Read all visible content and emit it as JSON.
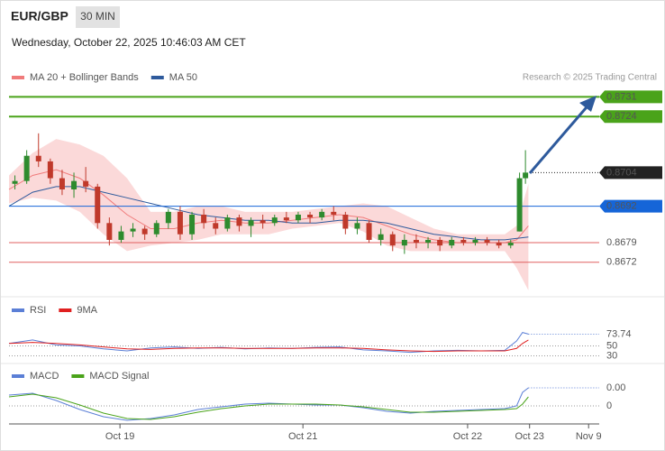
{
  "header": {
    "symbol": "EUR/GBP",
    "timeframe": "30 MIN",
    "datetime": "Wednesday, October 22, 2025 10:46:03 AM CET"
  },
  "credit": "Research © 2025 Trading Central",
  "chart_data": [
    {
      "type": "candlestick",
      "xlim": [
        0,
        100
      ],
      "ylim": [
        0.8661,
        0.8735
      ],
      "up_color": "#2e8b2e",
      "down_color": "#c0392b",
      "x": [
        1,
        3,
        5,
        7,
        9,
        11,
        13,
        15,
        17,
        19,
        21,
        23,
        25,
        27,
        29,
        31,
        33,
        35,
        37,
        39,
        41,
        43,
        45,
        47,
        49,
        51,
        53,
        55,
        57,
        59,
        61,
        63,
        65,
        67,
        69,
        71,
        73,
        75,
        77,
        79,
        81,
        83,
        85,
        86.5,
        87.5
      ],
      "open": [
        0.87,
        0.8701,
        0.871,
        0.8708,
        0.8702,
        0.8698,
        0.8701,
        0.8699,
        0.8686,
        0.868,
        0.8683,
        0.8684,
        0.8682,
        0.8686,
        0.869,
        0.8682,
        0.8689,
        0.8686,
        0.8684,
        0.8688,
        0.8685,
        0.8687,
        0.8686,
        0.8688,
        0.8687,
        0.8689,
        0.8688,
        0.869,
        0.8689,
        0.8684,
        0.8686,
        0.868,
        0.8682,
        0.8678,
        0.868,
        0.8679,
        0.868,
        0.8678,
        0.868,
        0.8679,
        0.868,
        0.8679,
        0.8678,
        0.8683,
        0.8702
      ],
      "high": [
        0.8703,
        0.8712,
        0.8718,
        0.8709,
        0.8705,
        0.8704,
        0.8706,
        0.87,
        0.8688,
        0.8685,
        0.8686,
        0.8685,
        0.8687,
        0.8691,
        0.8692,
        0.869,
        0.8691,
        0.8688,
        0.8689,
        0.8689,
        0.8688,
        0.8689,
        0.8689,
        0.869,
        0.869,
        0.869,
        0.8691,
        0.8692,
        0.869,
        0.8688,
        0.8687,
        0.8684,
        0.8683,
        0.8682,
        0.8682,
        0.8681,
        0.8681,
        0.8681,
        0.8681,
        0.8681,
        0.8681,
        0.868,
        0.868,
        0.8704,
        0.8712
      ],
      "low": [
        0.8698,
        0.87,
        0.8706,
        0.87,
        0.8696,
        0.8695,
        0.8697,
        0.8684,
        0.8678,
        0.8679,
        0.8681,
        0.868,
        0.8681,
        0.8684,
        0.868,
        0.868,
        0.8684,
        0.8682,
        0.8683,
        0.8683,
        0.8681,
        0.8684,
        0.8685,
        0.8686,
        0.8686,
        0.8686,
        0.8687,
        0.8687,
        0.8682,
        0.8682,
        0.8679,
        0.8678,
        0.8676,
        0.8675,
        0.8677,
        0.8677,
        0.8676,
        0.8677,
        0.8678,
        0.8678,
        0.8678,
        0.8677,
        0.8677,
        0.8683,
        0.87
      ],
      "close": [
        0.8701,
        0.871,
        0.8708,
        0.8702,
        0.8698,
        0.8701,
        0.8699,
        0.8686,
        0.868,
        0.8683,
        0.8684,
        0.8682,
        0.8686,
        0.869,
        0.8682,
        0.8689,
        0.8686,
        0.8684,
        0.8688,
        0.8685,
        0.8687,
        0.8686,
        0.8688,
        0.8687,
        0.8689,
        0.8688,
        0.869,
        0.8689,
        0.8684,
        0.8686,
        0.868,
        0.8682,
        0.8678,
        0.868,
        0.8679,
        0.868,
        0.8678,
        0.868,
        0.8679,
        0.868,
        0.8679,
        0.8678,
        0.8679,
        0.8702,
        0.8704
      ],
      "series": [
        {
          "name": "MA 20 + Bollinger Bands",
          "color": "#f07b7b",
          "band_color": "#fbd9d9",
          "x": [
            0,
            4,
            8,
            12,
            16,
            20,
            24,
            28,
            32,
            36,
            40,
            44,
            48,
            52,
            56,
            60,
            64,
            68,
            72,
            76,
            80,
            84,
            86,
            88
          ],
          "values": [
            0.8698,
            0.8703,
            0.8705,
            0.8702,
            0.8696,
            0.8689,
            0.8684,
            0.8684,
            0.8686,
            0.8687,
            0.8686,
            0.8686,
            0.8687,
            0.8688,
            0.8689,
            0.8688,
            0.8685,
            0.8682,
            0.868,
            0.8679,
            0.8679,
            0.8679,
            0.868,
            0.8685
          ],
          "upper": [
            0.8703,
            0.8711,
            0.8716,
            0.8714,
            0.871,
            0.8702,
            0.869,
            0.869,
            0.8692,
            0.8692,
            0.869,
            0.869,
            0.869,
            0.8691,
            0.8692,
            0.8693,
            0.8692,
            0.8688,
            0.8684,
            0.8682,
            0.8682,
            0.8682,
            0.8685,
            0.87
          ],
          "lower": [
            0.8693,
            0.8695,
            0.8694,
            0.869,
            0.8682,
            0.8676,
            0.8678,
            0.8679,
            0.868,
            0.8682,
            0.8682,
            0.8682,
            0.8684,
            0.8685,
            0.8686,
            0.8683,
            0.8678,
            0.8676,
            0.8676,
            0.8676,
            0.8676,
            0.8676,
            0.867,
            0.8662
          ]
        },
        {
          "name": "MA 50",
          "color": "#2e5a9c",
          "x": [
            0,
            4,
            8,
            12,
            16,
            20,
            24,
            28,
            32,
            36,
            40,
            44,
            48,
            52,
            56,
            60,
            64,
            68,
            72,
            76,
            80,
            84,
            88
          ],
          "values": [
            0.8692,
            0.8697,
            0.8699,
            0.8699,
            0.8697,
            0.8695,
            0.8693,
            0.8691,
            0.8689,
            0.8688,
            0.8687,
            0.8687,
            0.8686,
            0.8686,
            0.8687,
            0.8687,
            0.8686,
            0.8684,
            0.8682,
            0.8681,
            0.868,
            0.868,
            0.8681
          ]
        }
      ],
      "levels": [
        {
          "value": 0.8731,
          "color": "#4aa31a",
          "line": "solid",
          "boxed": true
        },
        {
          "value": 0.8724,
          "color": "#4aa31a",
          "line": "solid",
          "boxed": true
        },
        {
          "value": 0.8704,
          "color": "#222222",
          "line": "dotted",
          "boxed": true
        },
        {
          "value": 0.8692,
          "color": "#1565d8",
          "line": "solid",
          "boxed": true
        },
        {
          "value": 0.8679,
          "color": "#e06060",
          "line": "solid",
          "boxed": false
        },
        {
          "value": 0.8672,
          "color": "#e06060",
          "line": "solid",
          "boxed": false
        }
      ]
    },
    {
      "type": "line",
      "xlim": [
        0,
        100
      ],
      "ylim": [
        20,
        100
      ],
      "yticks": [
        30,
        50
      ],
      "series": [
        {
          "name": "RSI",
          "color": "#5b7fd6",
          "x": [
            0,
            4,
            8,
            12,
            16,
            20,
            24,
            28,
            32,
            36,
            40,
            44,
            48,
            52,
            56,
            60,
            64,
            68,
            72,
            76,
            80,
            84,
            86,
            87,
            88
          ],
          "values": [
            55,
            62,
            52,
            50,
            44,
            40,
            46,
            48,
            45,
            47,
            44,
            46,
            45,
            47,
            48,
            42,
            40,
            37,
            40,
            41,
            40,
            41,
            60,
            77,
            73.74
          ]
        },
        {
          "name": "9MA",
          "color": "#e02020",
          "x": [
            0,
            4,
            8,
            12,
            16,
            20,
            24,
            28,
            32,
            36,
            40,
            44,
            48,
            52,
            56,
            60,
            64,
            68,
            72,
            76,
            80,
            84,
            86,
            87,
            88
          ],
          "values": [
            55,
            57,
            55,
            52,
            48,
            44,
            43,
            45,
            46,
            46,
            45,
            45,
            45,
            46,
            46,
            45,
            42,
            40,
            39,
            40,
            40,
            40,
            45,
            55,
            62
          ]
        }
      ]
    },
    {
      "type": "line",
      "xlim": [
        0,
        100
      ],
      "ylim": [
        -0.0002,
        0.0004
      ],
      "yticks": [
        0
      ],
      "xticks": [
        {
          "value": 18.8,
          "label": "Oct 19"
        },
        {
          "value": 49.8,
          "label": "Oct 21"
        },
        {
          "value": 77.7,
          "label": "Oct 22"
        },
        {
          "value": 88.2,
          "label": "Oct 23"
        },
        {
          "value": 98.2,
          "label": "Nov 9"
        }
      ],
      "series": [
        {
          "name": "MACD",
          "color": "#5b7fd6",
          "x": [
            0,
            4,
            8,
            12,
            16,
            20,
            24,
            28,
            32,
            36,
            40,
            44,
            48,
            52,
            56,
            60,
            64,
            68,
            72,
            76,
            80,
            84,
            86,
            87,
            88
          ],
          "values": [
            0.00012,
            0.00014,
            6e-05,
            -4e-05,
            -0.00012,
            -0.00016,
            -0.00014,
            -0.0001,
            -4e-05,
            -1e-05,
            2e-05,
            3e-05,
            2e-05,
            1e-05,
            1e-05,
            -2e-05,
            -6e-05,
            -8e-05,
            -6e-05,
            -5e-05,
            -4e-05,
            -3e-05,
            0,
            0.00015,
            0.0002
          ],
          "value_labels": [
            null,
            null,
            null,
            null,
            null,
            null,
            null,
            null,
            null,
            null,
            null,
            null,
            null,
            null,
            null,
            null,
            null,
            null,
            null,
            null,
            null,
            null,
            null,
            null,
            "0.00"
          ]
        },
        {
          "name": "MACD Signal",
          "color": "#4aa31a",
          "x": [
            0,
            4,
            8,
            12,
            16,
            20,
            24,
            28,
            32,
            36,
            40,
            44,
            48,
            52,
            56,
            60,
            64,
            68,
            72,
            76,
            80,
            84,
            86,
            87,
            88
          ],
          "values": [
            0.0001,
            0.00013,
            9e-05,
            1e-05,
            -8e-05,
            -0.00014,
            -0.00015,
            -0.00012,
            -7e-05,
            -3e-05,
            0,
            2e-05,
            2e-05,
            2e-05,
            1e-05,
            -1e-05,
            -4e-05,
            -7e-05,
            -7e-05,
            -6e-05,
            -5e-05,
            -4e-05,
            -3e-05,
            2e-05,
            0.0001
          ]
        }
      ]
    }
  ]
}
